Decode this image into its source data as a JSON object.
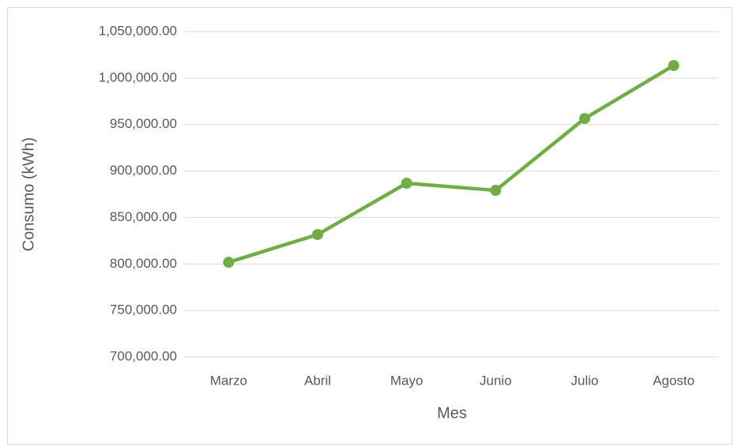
{
  "chart_data": {
    "type": "line",
    "x_label": "Mes",
    "y_label": "Consumo (kWh)",
    "categories": [
      "Marzo",
      "Abril",
      "Mayo",
      "Junio",
      "Julio",
      "Agosto"
    ],
    "series": [
      {
        "name": "Consumo",
        "color": "#70ad47",
        "values": [
          801900,
          831700,
          886900,
          879200,
          956500,
          1013500
        ]
      }
    ],
    "ylim": [
      700000,
      1050000
    ],
    "yticks": [
      {
        "value": 700000,
        "label": "700,000.00"
      },
      {
        "value": 750000,
        "label": "750,000.00"
      },
      {
        "value": 800000,
        "label": "800,000.00"
      },
      {
        "value": 850000,
        "label": "850,000.00"
      },
      {
        "value": 900000,
        "label": "900,000.00"
      },
      {
        "value": 950000,
        "label": "950,000.00"
      },
      {
        "value": 1000000,
        "label": "1,000,000.00"
      },
      {
        "value": 1050000,
        "label": "1,050,000.00"
      }
    ],
    "grid": true
  }
}
